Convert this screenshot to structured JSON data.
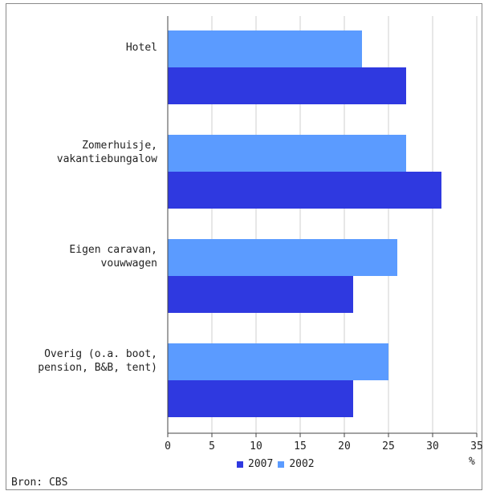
{
  "chart_data": {
    "type": "bar",
    "orientation": "horizontal",
    "categories": [
      "Hotel",
      "Zomerhuisje,\nvakantiebungalow",
      "Eigen caravan,\nvouwwagen",
      "Overig (o.a. boot,\npension, B&B, tent)"
    ],
    "series": [
      {
        "name": "2002",
        "color": "#5b9bff",
        "values": [
          22,
          27,
          26,
          25
        ]
      },
      {
        "name": "2007",
        "color": "#2f39e0",
        "values": [
          27,
          31,
          21,
          21
        ]
      }
    ],
    "xlim": [
      0,
      35
    ],
    "xticks": [
      0,
      5,
      10,
      15,
      20,
      25,
      30,
      35
    ],
    "xunit": "%",
    "grid": true,
    "legend": [
      "2007",
      "2002"
    ],
    "source": "Bron: CBS"
  }
}
